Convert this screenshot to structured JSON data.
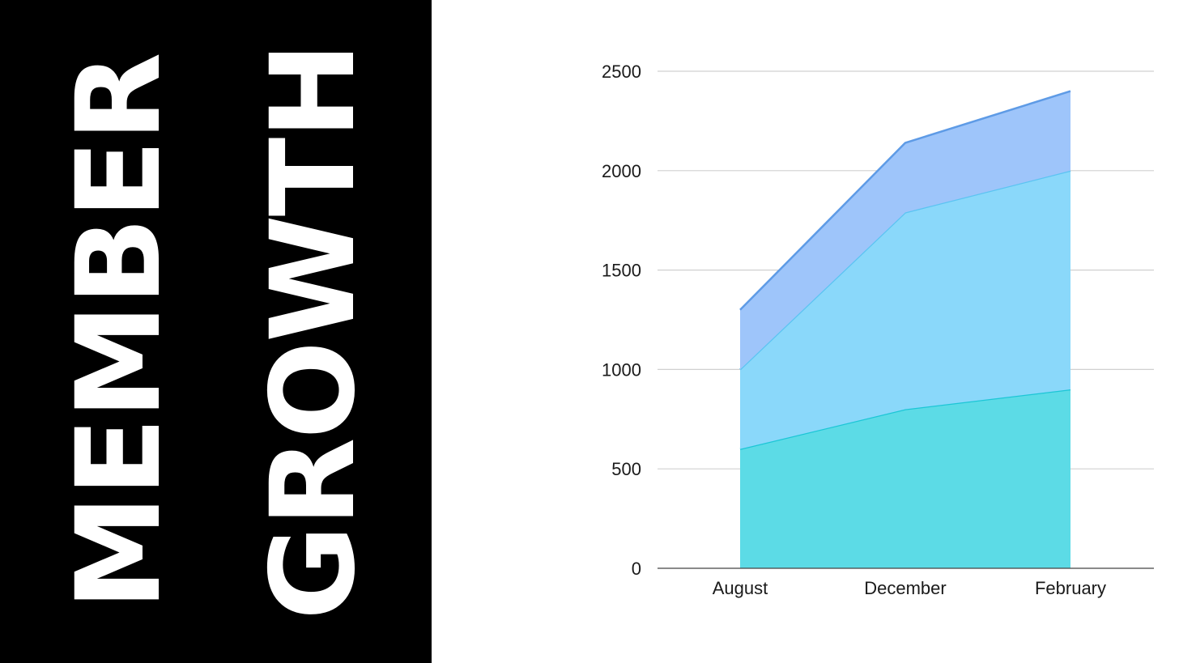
{
  "title": {
    "line1": "MEMBER",
    "line2": "GROWTH"
  },
  "colors": {
    "panel_background": "#000000",
    "title_text": "#ffffff",
    "grid": "#d0d0d0",
    "axis": "#444444"
  },
  "chart_data": {
    "type": "area",
    "stacked": true,
    "categories": [
      "August",
      "December",
      "February"
    ],
    "series": [
      {
        "values": [
          600,
          800,
          900
        ],
        "fill": "#5cdbe6",
        "stroke": "#1cc6d6"
      },
      {
        "values": [
          400,
          990,
          1100
        ],
        "fill": "#8ad8fa",
        "stroke": "#5bc4f2"
      },
      {
        "values": [
          300,
          350,
          400
        ],
        "fill": "#9ec5fa",
        "stroke": "#5e9be6"
      }
    ],
    "ylim": [
      0,
      2500
    ],
    "yticks": [
      0,
      500,
      1000,
      1500,
      2000,
      2500
    ],
    "grid": true,
    "xlabel": "",
    "ylabel": ""
  }
}
